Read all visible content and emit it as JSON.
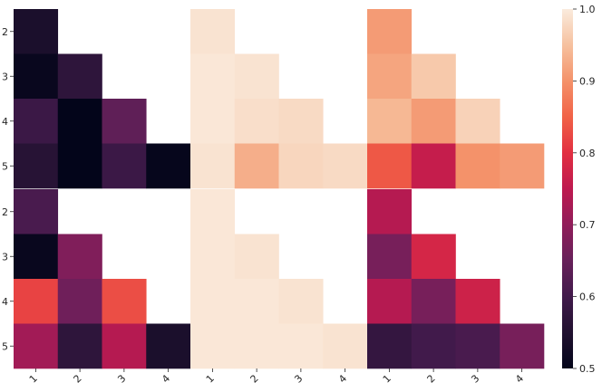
{
  "chart_data": {
    "type": "heatmap",
    "colormap": "rocket",
    "layout": "2 rows x 3 columns of lower-triangular heatmaps",
    "row_categories": [
      "2",
      "3",
      "4",
      "5"
    ],
    "col_categories": [
      "1",
      "2",
      "3",
      "4"
    ],
    "panels": [
      {
        "row": 0,
        "col": 0,
        "values": [
          [
            0.54,
            null,
            null,
            null
          ],
          [
            0.51,
            0.57,
            null,
            null
          ],
          [
            0.59,
            0.5,
            0.64,
            null
          ],
          [
            0.56,
            0.5,
            0.59,
            0.505
          ]
        ]
      },
      {
        "row": 0,
        "col": 1,
        "values": [
          [
            0.99,
            null,
            null,
            null
          ],
          [
            0.995,
            0.99,
            null,
            null
          ],
          [
            0.995,
            0.985,
            0.98,
            null
          ],
          [
            0.99,
            0.93,
            0.975,
            0.98
          ]
        ]
      },
      {
        "row": 0,
        "col": 2,
        "values": [
          [
            0.91,
            null,
            null,
            null
          ],
          [
            0.92,
            0.96,
            null,
            null
          ],
          [
            0.94,
            0.91,
            0.97,
            null
          ],
          [
            0.84,
            0.76,
            0.9,
            0.91
          ]
        ]
      },
      {
        "row": 1,
        "col": 0,
        "values": [
          [
            0.61,
            null,
            null,
            null
          ],
          [
            0.51,
            0.68,
            null,
            null
          ],
          [
            0.82,
            0.66,
            0.83,
            null
          ],
          [
            0.72,
            0.57,
            0.74,
            0.54
          ]
        ]
      },
      {
        "row": 1,
        "col": 1,
        "values": [
          [
            0.995,
            null,
            null,
            null
          ],
          [
            0.995,
            0.99,
            null,
            null
          ],
          [
            0.995,
            0.995,
            0.99,
            null
          ],
          [
            0.995,
            0.995,
            0.995,
            0.99
          ]
        ]
      },
      {
        "row": 1,
        "col": 2,
        "values": [
          [
            0.74,
            null,
            null,
            null
          ],
          [
            0.67,
            0.78,
            null,
            null
          ],
          [
            0.74,
            0.67,
            0.77,
            null
          ],
          [
            0.58,
            0.6,
            0.61,
            0.67
          ]
        ]
      }
    ],
    "colorbar": {
      "range": [
        0.5,
        1.0
      ],
      "ticks": [
        "0.5",
        "0.6",
        "0.7",
        "0.8",
        "0.9",
        "1.0"
      ]
    }
  }
}
